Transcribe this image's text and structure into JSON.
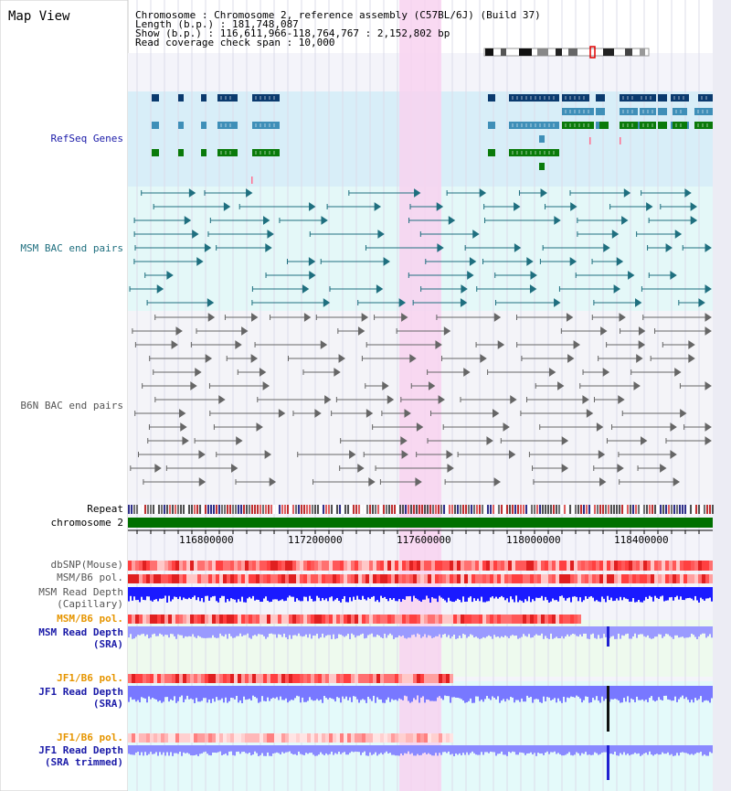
{
  "panel_title": "Map View",
  "info": {
    "chromosome": "Chromosome    : Chromosome 2, reference assembly (C57BL/6J) (Build 37)",
    "length": "Length (b.p.) : 181,748,087",
    "show": "  Show (b.p.) : 116,611,966-118,764,767 : 2,152,802 bp",
    "coverage": "Read coverage check span : 10,000"
  },
  "tracks": {
    "refseq": "RefSeq Genes",
    "msm_bac": "MSM BAC end pairs",
    "b6n_bac": "B6N BAC end pairs",
    "repeat": "Repeat",
    "chromosome": "chromosome 2",
    "dbsnp": "dbSNP(Mouse)",
    "msm_b6_pol": "MSM/B6 pol.",
    "msm_depth_cap_1": "MSM Read Depth",
    "msm_depth_cap_2": "(Capillary)",
    "msm_b6_pol2": "MSM/B6 pol.",
    "msm_depth_sra_1": "MSM Read Depth",
    "msm_depth_sra_2": "(SRA)",
    "jf1_b6_pol": "JF1/B6 pol.",
    "jf1_depth_sra_1": "JF1 Read Depth",
    "jf1_depth_sra_2": "(SRA)",
    "jf1_b6_pol2": "JF1/B6 pol.",
    "jf1_depth_trim_1": "JF1 Read Depth",
    "jf1_depth_trim_2": "(SRA trimmed)"
  },
  "axis_ticks": [
    "116800000",
    "117200000",
    "117600000",
    "118000000",
    "118400000"
  ],
  "colors": {
    "refseq_bg": "#d8eef8",
    "bac_bg": "#e4f8f8",
    "gene_dark": "#0a3a6e",
    "gene_mid": "#3f8fb8",
    "gene_green": "#0a7a0a",
    "highlight": "#f8d2f0",
    "chrom_green": "#007000",
    "depth_blue": "#2a2aff"
  }
}
